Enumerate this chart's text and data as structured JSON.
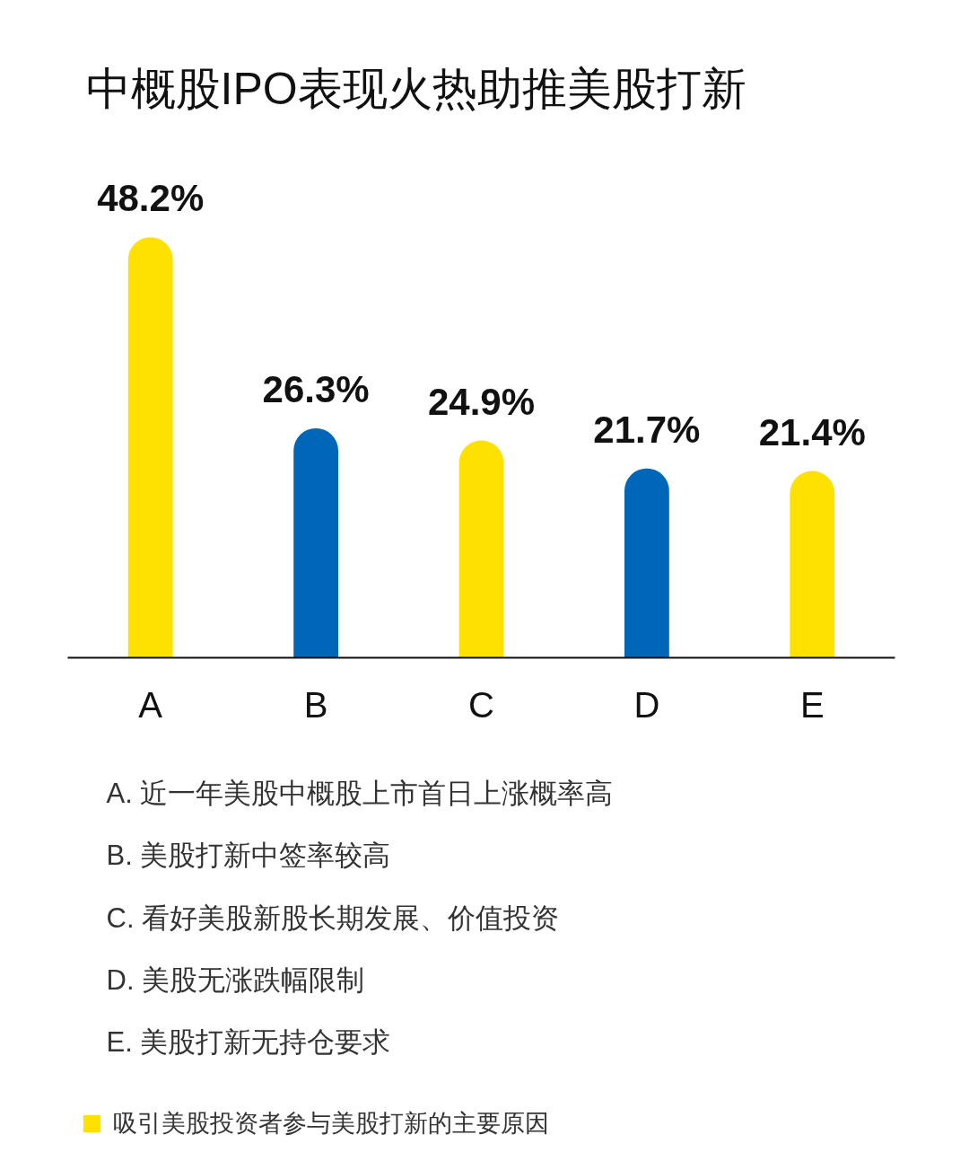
{
  "chart_data": {
    "type": "bar",
    "title": "中概股IPO表现火热助推美股打新",
    "categories": [
      "A",
      "B",
      "C",
      "D",
      "E"
    ],
    "series": [
      {
        "name": "吸引美股投资者参与美股打新的主要原因",
        "color": "#ffe100",
        "colors": [
          "#ffe100",
          "#0066b8",
          "#ffe100",
          "#0066b8",
          "#ffe100"
        ],
        "values": [
          48.2,
          26.3,
          24.9,
          21.7,
          21.4
        ],
        "value_labels": [
          "48.2%",
          "26.3%",
          "24.9%",
          "21.7%",
          "21.4%"
        ]
      }
    ],
    "annotations": [
      "A. 近一年美股中概股上市首日上涨概率高",
      "B. 美股打新中签率较高",
      "C. 看好美股新股长期发展、价值投资",
      "D. 美股无涨跌幅限制",
      "E. 美股打新无持仓要求"
    ],
    "legend": "bottom left",
    "tick_labels": "x"
  }
}
